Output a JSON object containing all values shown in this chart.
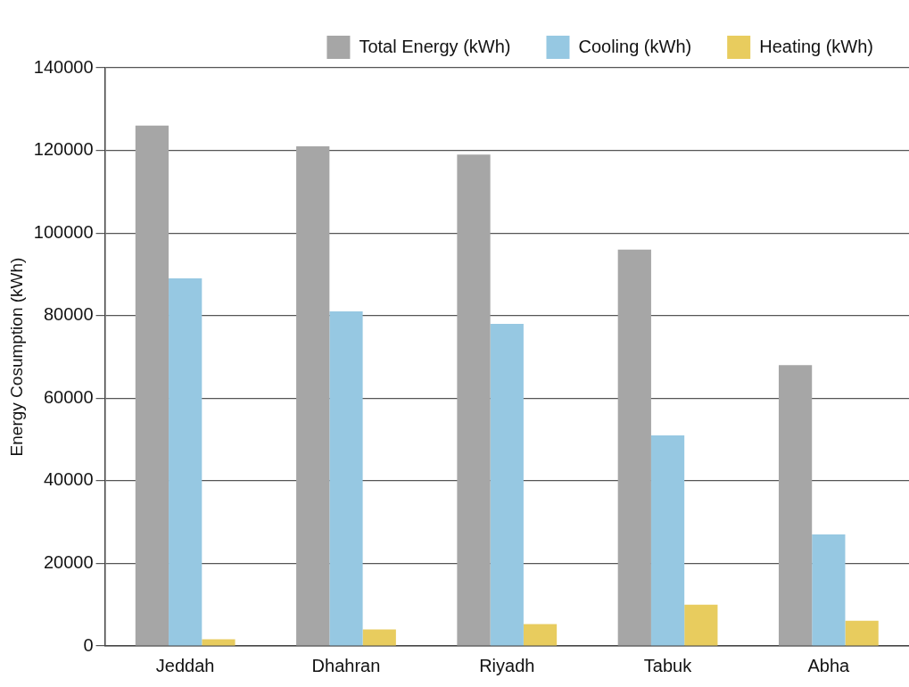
{
  "chart_data": {
    "type": "bar",
    "ylabel": "Energy Cosumption (kWh)",
    "categories": [
      "Jeddah",
      "Dhahran",
      "Riyadh",
      "Tabuk",
      "Abha"
    ],
    "series": [
      {
        "name": "Total Energy (kWh)",
        "color": "#a6a6a6",
        "values": [
          126000,
          121000,
          119000,
          96000,
          68000
        ]
      },
      {
        "name": "Cooling (kWh)",
        "color": "#96c8e2",
        "values": [
          89000,
          81000,
          78000,
          51000,
          27000
        ]
      },
      {
        "name": "Heating (kWh)",
        "color": "#e8cc5e",
        "values": [
          1600,
          4000,
          5300,
          10000,
          6100
        ]
      }
    ],
    "ylim": [
      0,
      140000
    ],
    "yticks": [
      0,
      20000,
      40000,
      60000,
      80000,
      100000,
      120000,
      140000
    ],
    "grid": "y",
    "legend": "top"
  }
}
